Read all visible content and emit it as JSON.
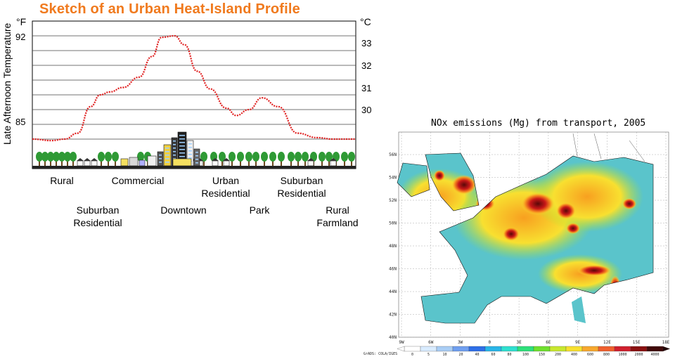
{
  "chart_data": [
    {
      "type": "line",
      "title": "Sketch of an Urban Heat-Island Profile",
      "ylabel": "Late Afternoon Temperature",
      "y_left_unit": "°F",
      "y_right_unit": "°C",
      "y_left_ticks": [
        "92",
        "85"
      ],
      "y_right_ticks": [
        "33",
        "32",
        "31",
        "30"
      ],
      "ylim_f": [
        83,
        93
      ],
      "series": [
        {
          "x": [
            0,
            6,
            10,
            14,
            18,
            21,
            24,
            28,
            33,
            37,
            40,
            44,
            47,
            51,
            55,
            60,
            63,
            67,
            71,
            76,
            82,
            88,
            93,
            100
          ],
          "values": [
            85,
            84.9,
            85.0,
            85.4,
            87.2,
            88.0,
            88.2,
            88.5,
            89.2,
            90.6,
            91.9,
            92.0,
            91.4,
            89.6,
            88.4,
            87.1,
            86.6,
            87.0,
            87.8,
            87.2,
            85.4,
            85.1,
            85.0,
            85.0
          ],
          "color": "#e02020"
        }
      ],
      "zones_top": [
        "Rural",
        "Commercial",
        "Urban\nResidential",
        "Suburban\nResidential"
      ],
      "zones_bottom": [
        "Suburban\nResidential",
        "Downtown",
        "Park",
        "Rural\nFarmland"
      ]
    },
    {
      "type": "heatmap",
      "title": "NOx emissions (Mg) from transport, 2005",
      "x_ticks": [
        "9W",
        "6W",
        "3W",
        "0",
        "3E",
        "6E",
        "9E",
        "12E",
        "15E",
        "18E"
      ],
      "y_ticks": [
        "56N",
        "54N",
        "52N",
        "50N",
        "48N",
        "46N",
        "44N",
        "42N",
        "40N"
      ],
      "colorbar_ticks": [
        "0",
        "5",
        "10",
        "20",
        "40",
        "60",
        "80",
        "100",
        "150",
        "200",
        "400",
        "600",
        "800",
        "1000",
        "2000",
        "4000"
      ],
      "colorbar_colors": [
        "#ffffff",
        "#d9ecff",
        "#a9cdf5",
        "#6f9ff0",
        "#2e6fe8",
        "#29b5e8",
        "#2ee0d0",
        "#2ee07a",
        "#6fe02e",
        "#c8e82e",
        "#f8e02e",
        "#f8a82e",
        "#f0602e",
        "#d0202e",
        "#8a1010",
        "#400808"
      ],
      "credit": "GrADS: COLA/IGES"
    }
  ]
}
